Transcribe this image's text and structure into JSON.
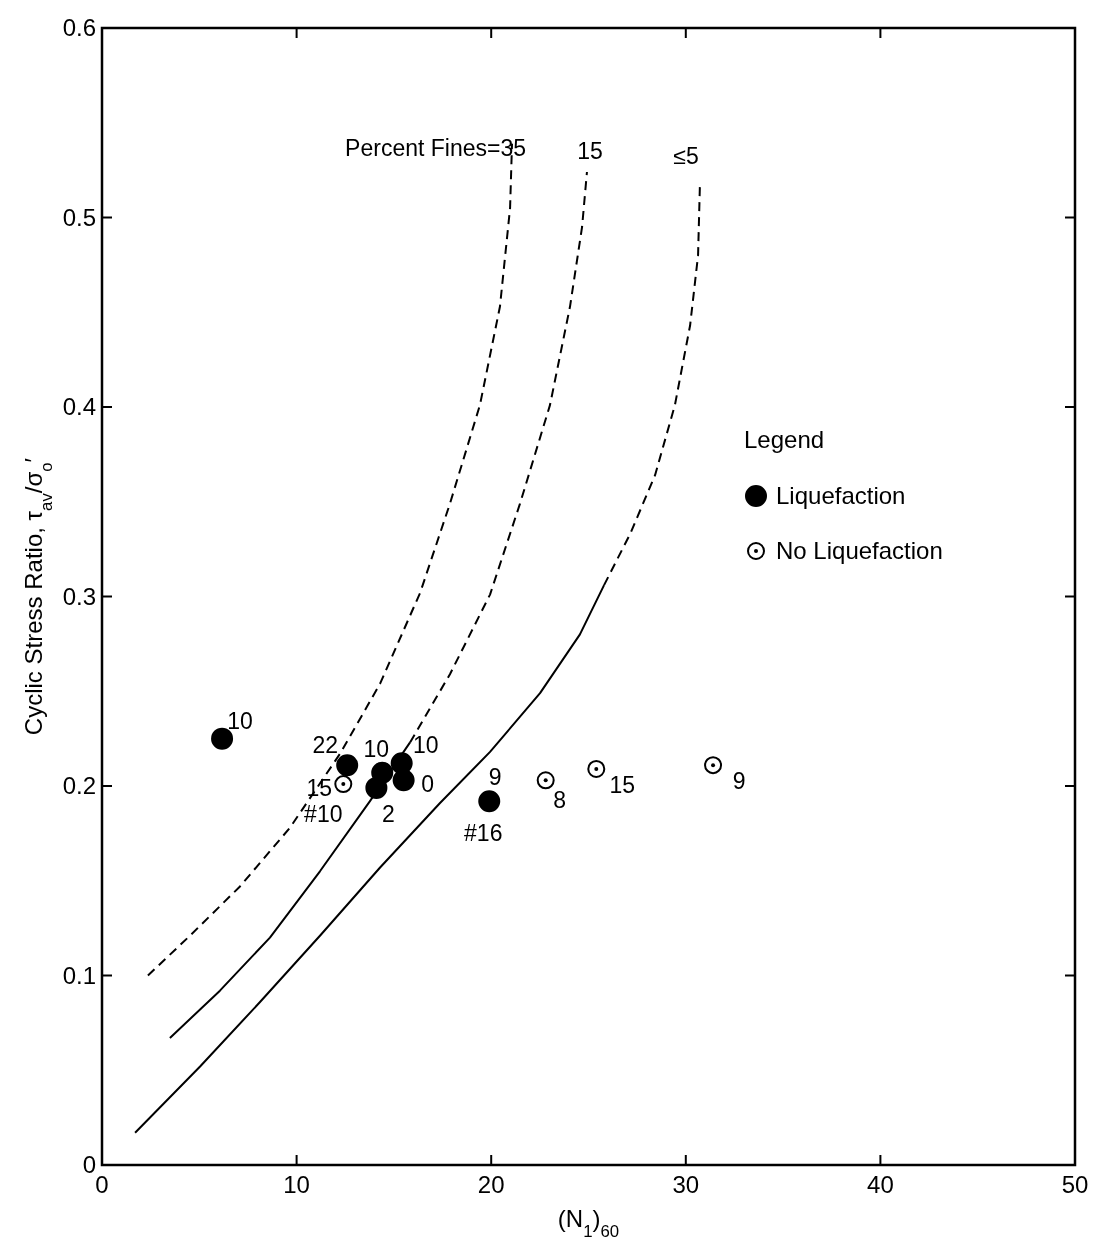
{
  "chart_data": {
    "type": "scatter",
    "xlabel": "(N$_{1}$)$_{60}$",
    "ylabel": "Cyclic Stress Ratio, τ$_{av}$/σ$_{o}$′",
    "xlim": [
      0,
      50
    ],
    "xticks": [
      0,
      10,
      20,
      30,
      40,
      50
    ],
    "ylim": [
      0,
      0.6
    ],
    "yticks": [
      0,
      0.1,
      0.2,
      0.3,
      0.4,
      0.5,
      0.6
    ],
    "grid": false,
    "legend": "right",
    "legend_title": "Legend",
    "marker": "circle",
    "series": [
      {
        "type": "line",
        "color": "#000000",
        "marker": "none",
        "line_style": "dashed",
        "x": [
          2.36,
          4.52,
          7.09,
          9.66,
          12.23,
          14.29,
          16.35,
          17.88,
          19.42,
          20.45,
          20.97,
          21.07
        ],
        "values": [
          0.1,
          0.121,
          0.147,
          0.178,
          0.217,
          0.254,
          0.302,
          0.349,
          0.401,
          0.453,
          0.505,
          0.539
        ]
      },
      {
        "type": "line",
        "color": "#000000",
        "marker": "none",
        "line_style": "solid",
        "x": [
          3.49,
          6.06,
          8.63,
          11.2,
          13.77,
          15.83
        ],
        "values": [
          0.067,
          0.092,
          0.12,
          0.155,
          0.192,
          0.223
        ]
      },
      {
        "type": "line",
        "color": "#000000",
        "marker": "none",
        "line_style": "dashed",
        "x": [
          15.83,
          17.88,
          19.94,
          21.48,
          23.02,
          24.05,
          24.67,
          24.92
        ],
        "values": [
          0.223,
          0.259,
          0.301,
          0.349,
          0.401,
          0.453,
          0.495,
          0.524
        ]
      },
      {
        "type": "line",
        "color": "#000000",
        "marker": "none",
        "line_style": "solid",
        "x": [
          1.7,
          5.04,
          8.12,
          11.2,
          14.29,
          17.37,
          19.94,
          22.51,
          24.56,
          25.8
        ],
        "values": [
          0.017,
          0.052,
          0.086,
          0.121,
          0.157,
          0.191,
          0.218,
          0.249,
          0.28,
          0.306
        ]
      },
      {
        "type": "line",
        "color": "#000000",
        "marker": "none",
        "line_style": "dashed",
        "x": [
          25.8,
          27.14,
          28.42,
          29.44,
          30.22,
          30.63,
          30.73
        ],
        "values": [
          0.306,
          0.333,
          0.364,
          0.401,
          0.443,
          0.48,
          0.519
        ]
      },
      {
        "name": "Liquefaction",
        "color": "#000000",
        "x": [
          6.17,
          12.6,
          14.4,
          15.4,
          14.1,
          15.5,
          19.9
        ],
        "values": [
          0.225,
          0.211,
          0.207,
          0.212,
          0.199,
          0.203,
          0.192
        ]
      },
      {
        "name": "No Liquefaction",
        "color": "#ffffff",
        "x": [
          12.4,
          22.8,
          25.4,
          31.4
        ],
        "values": [
          0.201,
          0.203,
          0.209,
          0.211
        ]
      }
    ],
    "annotations": [
      {
        "text": "Percent Fines=35",
        "x": 21.07,
        "y": 0.539
      },
      {
        "text": "15",
        "x": 24.92,
        "y": 0.524
      },
      {
        "text": "≤5",
        "x": 30.73,
        "y": 0.519
      },
      {
        "text": "10",
        "x": 6.17,
        "y": 0.225
      },
      {
        "text": "22",
        "x": 12.6,
        "y": 0.211
      },
      {
        "text": "10",
        "x": 14.4,
        "y": 0.207
      },
      {
        "text": "10",
        "x": 15.4,
        "y": 0.212
      },
      {
        "text": "15",
        "x": 12.4,
        "y": 0.201
      },
      {
        "text": "#10",
        "x": 12.4,
        "y": 0.201
      },
      {
        "text": "2",
        "x": 14.1,
        "y": 0.199
      },
      {
        "text": "0",
        "x": 15.5,
        "y": 0.203
      },
      {
        "text": "9",
        "x": 19.9,
        "y": 0.192
      },
      {
        "text": "#16",
        "x": 19.9,
        "y": 0.192
      },
      {
        "text": "8",
        "x": 22.8,
        "y": 0.203
      },
      {
        "text": "15",
        "x": 25.4,
        "y": 0.209
      },
      {
        "text": "9",
        "x": 31.4,
        "y": 0.211
      }
    ]
  }
}
